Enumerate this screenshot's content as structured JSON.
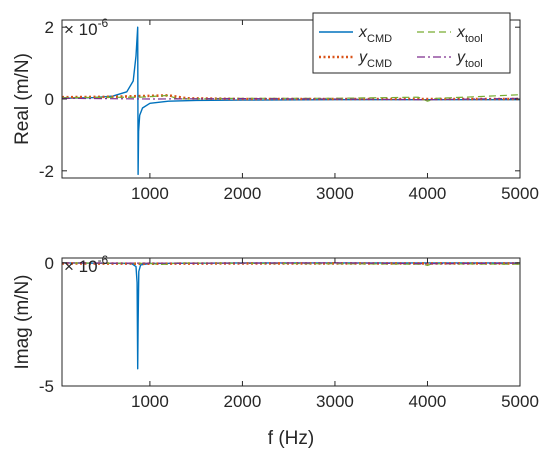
{
  "chart_data": [
    {
      "type": "line",
      "ylabel": "Real (m/N)",
      "multiplier_base": "× 10",
      "multiplier_exp": "-6",
      "xlim": [
        50,
        5000
      ],
      "ylim": [
        -2.2,
        2.2
      ],
      "xticks": [
        "1000",
        "2000",
        "3000",
        "4000",
        "5000"
      ],
      "yticks": [
        "2",
        "0",
        "-2"
      ],
      "legend_position": "top-right",
      "legend": [
        {
          "sym": "x",
          "sub": "CMD",
          "color": "#0072BD",
          "style": "solid"
        },
        {
          "sym": "x",
          "sub": "tool",
          "color": "#77AC30",
          "style": "dashed"
        },
        {
          "sym": "y",
          "sub": "CMD",
          "color": "#D95319",
          "style": "dotted"
        },
        {
          "sym": "y",
          "sub": "tool",
          "color": "#7E2F8E",
          "style": "dashdot"
        }
      ],
      "series": [
        {
          "name": "xCMD",
          "color": "#0072BD",
          "style": "solid",
          "x": [
            50,
            400,
            600,
            750,
            820,
            850,
            868,
            872,
            878,
            890,
            920,
            1000,
            1200,
            1500,
            2000,
            3000,
            4000,
            5000
          ],
          "y": [
            0.02,
            0.04,
            0.08,
            0.2,
            0.5,
            1.2,
            2.0,
            -2.1,
            -0.9,
            -0.45,
            -0.25,
            -0.12,
            -0.06,
            -0.04,
            -0.03,
            -0.02,
            -0.02,
            -0.02
          ]
        },
        {
          "name": "yCMD",
          "color": "#D95319",
          "style": "dotted",
          "x": [
            50,
            600,
            900,
            1200,
            1400,
            2000,
            3000,
            4000,
            5000
          ],
          "y": [
            0.05,
            0.06,
            0.08,
            0.1,
            0.02,
            0.0,
            0.0,
            0.0,
            0.0
          ]
        },
        {
          "name": "xtool",
          "color": "#77AC30",
          "style": "dashed",
          "x": [
            50,
            900,
            1200,
            1300,
            2000,
            3000,
            3900,
            4000,
            4100,
            4500,
            5000
          ],
          "y": [
            0.04,
            0.05,
            0.1,
            0.0,
            0.02,
            0.02,
            0.05,
            -0.06,
            0.02,
            0.06,
            0.12
          ]
        },
        {
          "name": "ytool",
          "color": "#7E2F8E",
          "style": "dashdot",
          "x": [
            50,
            1000,
            2000,
            3000,
            4000,
            5000
          ],
          "y": [
            0.02,
            0.0,
            0.01,
            0.0,
            -0.02,
            0.02
          ]
        }
      ]
    },
    {
      "type": "line",
      "ylabel": "Imag (m/N)",
      "xlabel": "f (Hz)",
      "multiplier_base": "× 10",
      "multiplier_exp": "-6",
      "xlim": [
        50,
        5000
      ],
      "ylim": [
        -5,
        0.2
      ],
      "xticks": [
        "1000",
        "2000",
        "3000",
        "4000",
        "5000"
      ],
      "yticks": [
        "0",
        "-5"
      ],
      "series": [
        {
          "name": "xCMD",
          "color": "#0072BD",
          "style": "solid",
          "x": [
            50,
            800,
            850,
            862,
            868,
            872,
            880,
            900,
            1000,
            2000,
            3000,
            4000,
            5000
          ],
          "y": [
            0,
            -0.02,
            -0.15,
            -0.8,
            -4.3,
            -2.5,
            -0.35,
            -0.08,
            -0.02,
            0,
            0,
            0,
            0
          ]
        },
        {
          "name": "yCMD",
          "color": "#D95319",
          "style": "dotted",
          "x": [
            50,
            1000,
            2000,
            3000,
            4000,
            5000
          ],
          "y": [
            -0.02,
            -0.03,
            -0.02,
            -0.02,
            -0.02,
            -0.02
          ]
        },
        {
          "name": "xtool",
          "color": "#77AC30",
          "style": "dashed",
          "x": [
            50,
            1000,
            1100,
            1200,
            1300,
            2000,
            3000,
            3950,
            4000,
            4050,
            5000
          ],
          "y": [
            0,
            -0.02,
            -0.06,
            -0.05,
            0,
            -0.02,
            -0.03,
            -0.05,
            -0.1,
            -0.03,
            -0.05
          ]
        },
        {
          "name": "ytool",
          "color": "#7E2F8E",
          "style": "dashdot",
          "x": [
            50,
            1000,
            2000,
            3000,
            4000,
            5000
          ],
          "y": [
            0,
            -0.01,
            -0.01,
            0,
            -0.03,
            -0.01
          ]
        }
      ]
    }
  ]
}
